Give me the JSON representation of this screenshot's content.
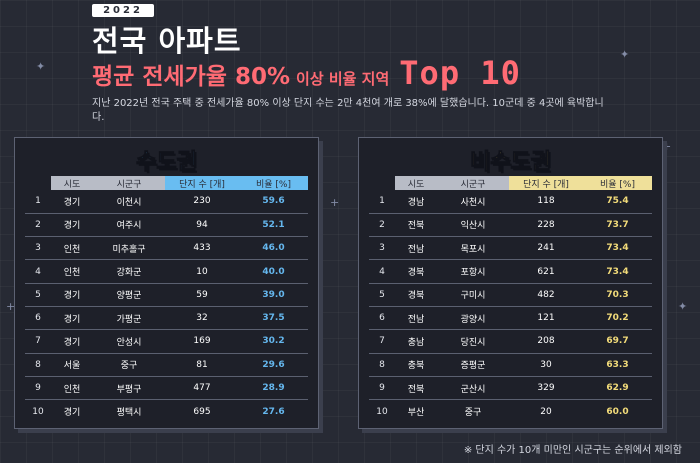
{
  "header": {
    "year": "2022",
    "title_line1": "전국 아파트",
    "title_line2_main": "평균 전세가율 80%",
    "title_line2_small": "이상 비율 지역",
    "title_line2_top": "Top 10"
  },
  "description": "지난 2022년 전국 주택 중 전세가율 80% 이상 단지 수는 2만 4천여 개로 38%에 달했습니다. 10군데 중 4곳에 육박합니다.",
  "columns": {
    "sido": "시도",
    "sigungu": "시군구",
    "count": "단지 수 [개]",
    "rate": "비율 [%]"
  },
  "left_panel": {
    "title": "수도권",
    "rows": [
      {
        "rank": "1",
        "sido": "경기",
        "sigungu": "이천시",
        "count": "230",
        "rate": "59.6"
      },
      {
        "rank": "2",
        "sido": "경기",
        "sigungu": "여주시",
        "count": "94",
        "rate": "52.1"
      },
      {
        "rank": "3",
        "sido": "인천",
        "sigungu": "미추홀구",
        "count": "433",
        "rate": "46.0"
      },
      {
        "rank": "4",
        "sido": "인천",
        "sigungu": "강화군",
        "count": "10",
        "rate": "40.0"
      },
      {
        "rank": "5",
        "sido": "경기",
        "sigungu": "양평군",
        "count": "59",
        "rate": "39.0"
      },
      {
        "rank": "6",
        "sido": "경기",
        "sigungu": "가평군",
        "count": "32",
        "rate": "37.5"
      },
      {
        "rank": "7",
        "sido": "경기",
        "sigungu": "안성시",
        "count": "169",
        "rate": "30.2"
      },
      {
        "rank": "8",
        "sido": "서울",
        "sigungu": "중구",
        "count": "81",
        "rate": "29.6"
      },
      {
        "rank": "9",
        "sido": "인천",
        "sigungu": "부평구",
        "count": "477",
        "rate": "28.9"
      },
      {
        "rank": "10",
        "sido": "경기",
        "sigungu": "평택시",
        "count": "695",
        "rate": "27.6"
      }
    ]
  },
  "right_panel": {
    "title": "비수도권",
    "rows": [
      {
        "rank": "1",
        "sido": "경남",
        "sigungu": "사천시",
        "count": "118",
        "rate": "75.4"
      },
      {
        "rank": "2",
        "sido": "전북",
        "sigungu": "익산시",
        "count": "228",
        "rate": "73.7"
      },
      {
        "rank": "3",
        "sido": "전남",
        "sigungu": "목포시",
        "count": "241",
        "rate": "73.4"
      },
      {
        "rank": "4",
        "sido": "경북",
        "sigungu": "포항시",
        "count": "621",
        "rate": "73.4"
      },
      {
        "rank": "5",
        "sido": "경북",
        "sigungu": "구미시",
        "count": "482",
        "rate": "70.3"
      },
      {
        "rank": "6",
        "sido": "전남",
        "sigungu": "광양시",
        "count": "121",
        "rate": "70.2"
      },
      {
        "rank": "7",
        "sido": "충남",
        "sigungu": "당진시",
        "count": "208",
        "rate": "69.7"
      },
      {
        "rank": "8",
        "sido": "충북",
        "sigungu": "증평군",
        "count": "30",
        "rate": "63.3"
      },
      {
        "rank": "9",
        "sido": "전북",
        "sigungu": "군산시",
        "count": "329",
        "rate": "62.9"
      },
      {
        "rank": "10",
        "sido": "부산",
        "sigungu": "중구",
        "count": "20",
        "rate": "60.0"
      }
    ]
  },
  "footnote": "※ 단지 수가 10개 미만인 시군구는 순위에서 제외함",
  "colors": {
    "background": "#272a34",
    "title_accent": "#ff6b74",
    "left_accent": "#57b0ef",
    "right_accent": "#f2d96c"
  }
}
